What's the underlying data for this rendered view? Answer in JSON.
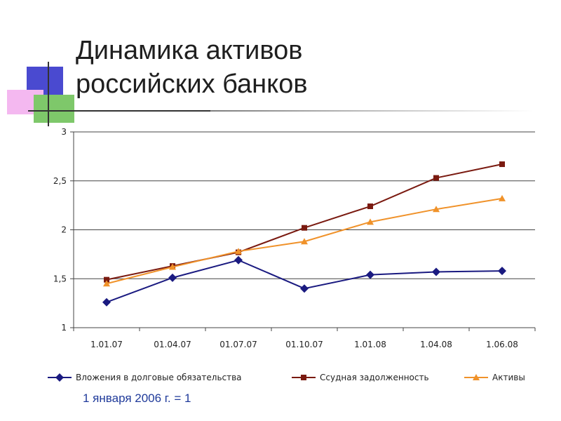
{
  "slide": {
    "title_line1": "Динамика активов",
    "title_line2": "российских банков",
    "footnote": "1 января 2006 г. = 1"
  },
  "colors": {
    "deco_blue": "#4a4ad0",
    "deco_pink": "#f4b8f0",
    "deco_green": "#7ec86a",
    "rule_dark": "#333333"
  },
  "chart_data": {
    "type": "line",
    "title": "",
    "xlabel": "",
    "ylabel": "",
    "categories": [
      "1.01.07",
      "01.04.07",
      "01.07.07",
      "01.10.07",
      "1.01.08",
      "1.04.08",
      "1.06.08"
    ],
    "ylim": [
      1,
      3
    ],
    "yticks": [
      1,
      1.5,
      2,
      2.5,
      3
    ],
    "ytick_labels": [
      "1",
      "1,5",
      "2",
      "2,5",
      "3"
    ],
    "grid": true,
    "legend_position": "bottom",
    "series": [
      {
        "name": "Вложения в долговые обязательства",
        "color": "#1a1a80",
        "marker": "diamond",
        "values": [
          1.26,
          1.51,
          1.69,
          1.4,
          1.54,
          1.57,
          1.58
        ]
      },
      {
        "name": "Ссудная задолженность",
        "color": "#7a1a10",
        "marker": "square",
        "values": [
          1.49,
          1.63,
          1.77,
          2.02,
          2.24,
          2.53,
          2.67
        ]
      },
      {
        "name": "Активы",
        "color": "#f0922a",
        "marker": "triangle",
        "values": [
          1.45,
          1.62,
          1.78,
          1.88,
          2.08,
          2.21,
          2.32
        ]
      }
    ]
  }
}
